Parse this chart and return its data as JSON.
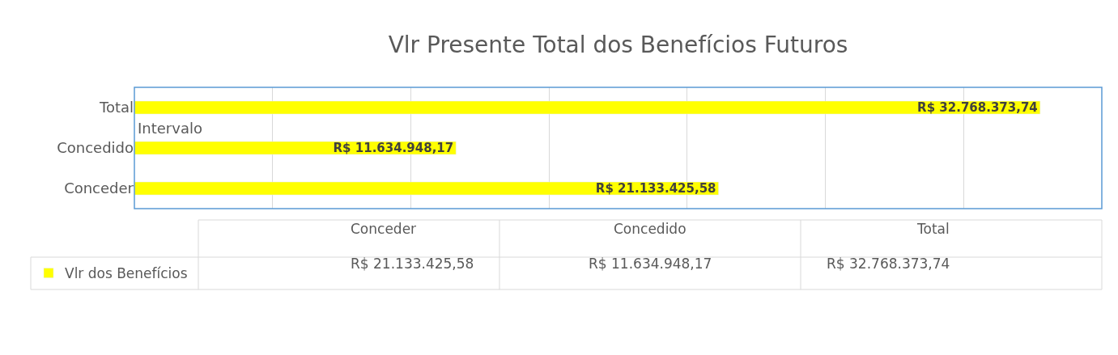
{
  "chart_data": {
    "type": "bar",
    "orientation": "horizontal",
    "title": "Vlr Presente Total dos Benefícios Futuros",
    "categories": [
      "Total",
      "Concedido",
      "Conceder"
    ],
    "series": [
      {
        "name": "Vlr dos Benefícios",
        "color": "#ffff00",
        "values": [
          32768373.74,
          11634948.17,
          21133425.58
        ],
        "value_labels": [
          "R$ 32.768.373,74",
          "R$ 11.634.948,17",
          "R$ 21.133.425,58"
        ]
      }
    ],
    "xlim": [
      0,
      35000000
    ],
    "xticks": [
      {
        "value": 0,
        "label": null
      },
      {
        "value": 5000000,
        "label": null
      },
      {
        "value": 10000000,
        "label": null
      },
      {
        "value": 15000000,
        "label": null
      },
      {
        "value": 20000000,
        "label": null
      },
      {
        "value": 25000000,
        "label": null
      },
      {
        "value": 30000000,
        "label": null
      },
      {
        "value": 35000000,
        "label": null
      }
    ],
    "tick_labels": "y",
    "grid": "x",
    "legend": "bottom",
    "data_labels": true,
    "annotations": [
      "Intervalo"
    ]
  }
}
